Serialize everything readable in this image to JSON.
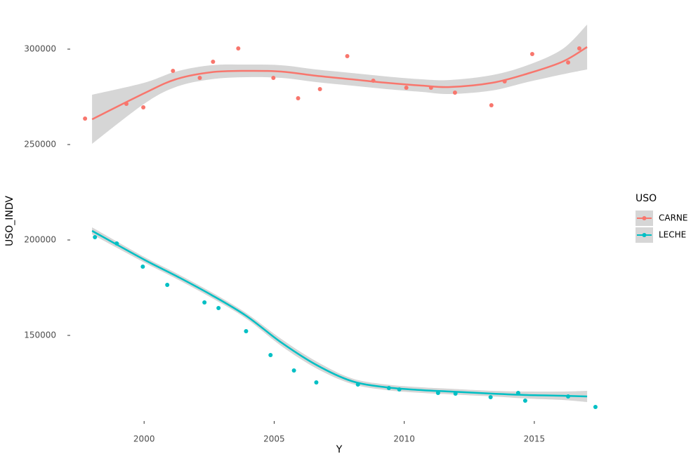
{
  "chart_data": {
    "type": "scatter",
    "xlabel": "Y",
    "ylabel": "USO_INDV",
    "xlim": [
      1997.16,
      2017.81
    ],
    "ylim": [
      105147,
      314706
    ],
    "xticks": [
      2000,
      2005,
      2010,
      2015
    ],
    "yticks": [
      150000,
      200000,
      250000,
      300000
    ],
    "grid": false,
    "legend": {
      "title": "USO",
      "position": "right"
    },
    "series": [
      {
        "name": "CARNE",
        "color": "#F8766D",
        "x": [
          1997.73,
          1999.32,
          1999.97,
          2001.11,
          2002.14,
          2002.65,
          2003.62,
          2004.97,
          2005.92,
          2006.76,
          2007.81,
          2008.81,
          2010.08,
          2011.03,
          2011.95,
          2013.35,
          2013.86,
          2014.92,
          2016.3,
          2016.73
        ],
        "values": [
          263603,
          271324,
          269485,
          288603,
          284926,
          293382,
          300368,
          284926,
          274265,
          279044,
          296324,
          283456,
          279779,
          279779,
          277206,
          270588,
          283088,
          297426,
          293015,
          300368
        ],
        "smooth": {
          "x": [
            1998.0,
            2000.0,
            2001.22,
            2002.57,
            2003.92,
            2005.27,
            2006.62,
            2007.97,
            2009.32,
            2010.68,
            2011.76,
            2013.38,
            2014.73,
            2016.08,
            2017.03
          ],
          "values": [
            263235,
            276838,
            284191,
            287868,
            288603,
            288235,
            286029,
            284191,
            282353,
            280882,
            280147,
            282353,
            287132,
            293382,
            301103
          ],
          "lower": [
            250367,
            271323,
            280147,
            284192,
            285294,
            284926,
            282720,
            280882,
            279044,
            277573,
            276471,
            278309,
            282720,
            286764,
            289338
          ],
          "upper": [
            276103,
            282353,
            288235,
            291544,
            291912,
            291544,
            289338,
            287500,
            285662,
            284191,
            283823,
            286397,
            291544,
            300000,
            312868
          ]
        }
      },
      {
        "name": "LECHE",
        "color": "#00BFC4",
        "x": [
          1998.11,
          1998.95,
          1999.95,
          2000.89,
          2002.32,
          2002.86,
          2003.92,
          2004.86,
          2005.76,
          2006.62,
          2008.22,
          2009.41,
          2009.81,
          2011.3,
          2011.97,
          2013.32,
          2014.38,
          2014.65,
          2016.3,
          2017.35
        ],
        "values": [
          201471,
          198162,
          186029,
          176471,
          167279,
          164338,
          152206,
          139706,
          131618,
          125368,
          124265,
          122426,
          121691,
          119853,
          119485,
          117647,
          119853,
          115809,
          118015,
          112500
        ],
        "smooth": {
          "x": [
            1998.0,
            2000.0,
            2001.22,
            2002.57,
            2003.92,
            2005.27,
            2006.62,
            2007.97,
            2009.32,
            2010.68,
            2011.76,
            2013.38,
            2014.73,
            2016.08,
            2017.03
          ],
          "values": [
            204779,
            189706,
            181250,
            171324,
            160294,
            146324,
            134559,
            126103,
            122794,
            121324,
            120588,
            119485,
            118750,
            118382,
            118015
          ],
          "lower": [
            202941,
            188235,
            179779,
            169853,
            158823,
            144486,
            132721,
            124632,
            121323,
            119853,
            119117,
            118014,
            116912,
            116176,
            115074
          ],
          "upper": [
            206617,
            191177,
            182721,
            172795,
            161765,
            148162,
            136397,
            127574,
            124265,
            122795,
            122059,
            120956,
            120588,
            120588,
            120956
          ]
        }
      }
    ]
  }
}
